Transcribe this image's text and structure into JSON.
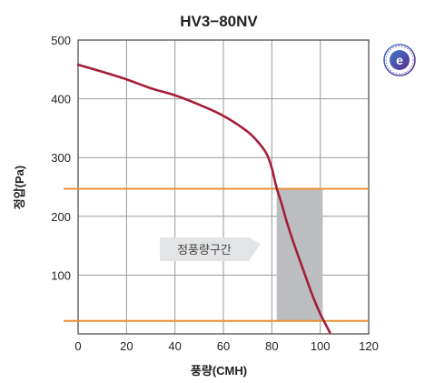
{
  "chart_data": {
    "type": "line",
    "title": "HV3−80NV",
    "xlabel": "풍량(CMH)",
    "ylabel": "정압(Pa)",
    "xlim": [
      0,
      120
    ],
    "ylim": [
      0,
      500
    ],
    "x_ticks": [
      "0",
      "20",
      "40",
      "60",
      "80",
      "100",
      "120"
    ],
    "y_ticks": [
      "100",
      "200",
      "300",
      "400",
      "500"
    ],
    "grid": true,
    "series": [
      {
        "points": [
          [
            0,
            458
          ],
          [
            10,
            446
          ],
          [
            20,
            433
          ],
          [
            30,
            418
          ],
          [
            40,
            406
          ],
          [
            50,
            390
          ],
          [
            60,
            371
          ],
          [
            70,
            344
          ],
          [
            75,
            323
          ],
          [
            78,
            305
          ],
          [
            80,
            282
          ],
          [
            81,
            265
          ],
          [
            82,
            248
          ],
          [
            84,
            222
          ],
          [
            86,
            193
          ],
          [
            88,
            167
          ],
          [
            90,
            143
          ],
          [
            92,
            120
          ],
          [
            94,
            97
          ],
          [
            96,
            74
          ],
          [
            98,
            53
          ],
          [
            100,
            34
          ],
          [
            102,
            18
          ],
          [
            104,
            2
          ]
        ],
        "color": "#a51d3a"
      }
    ],
    "reference_lines": [
      {
        "y": 247,
        "color": "#e8902f"
      },
      {
        "y": 22,
        "color": "#e8902f"
      }
    ],
    "shaded_region": {
      "x": [
        82,
        101
      ],
      "y": [
        22,
        247
      ],
      "color": "#bcbdc0"
    },
    "annotation": {
      "text": "정풍량구간"
    }
  },
  "badge": {
    "icon": "quality-certification-seal-icon"
  }
}
